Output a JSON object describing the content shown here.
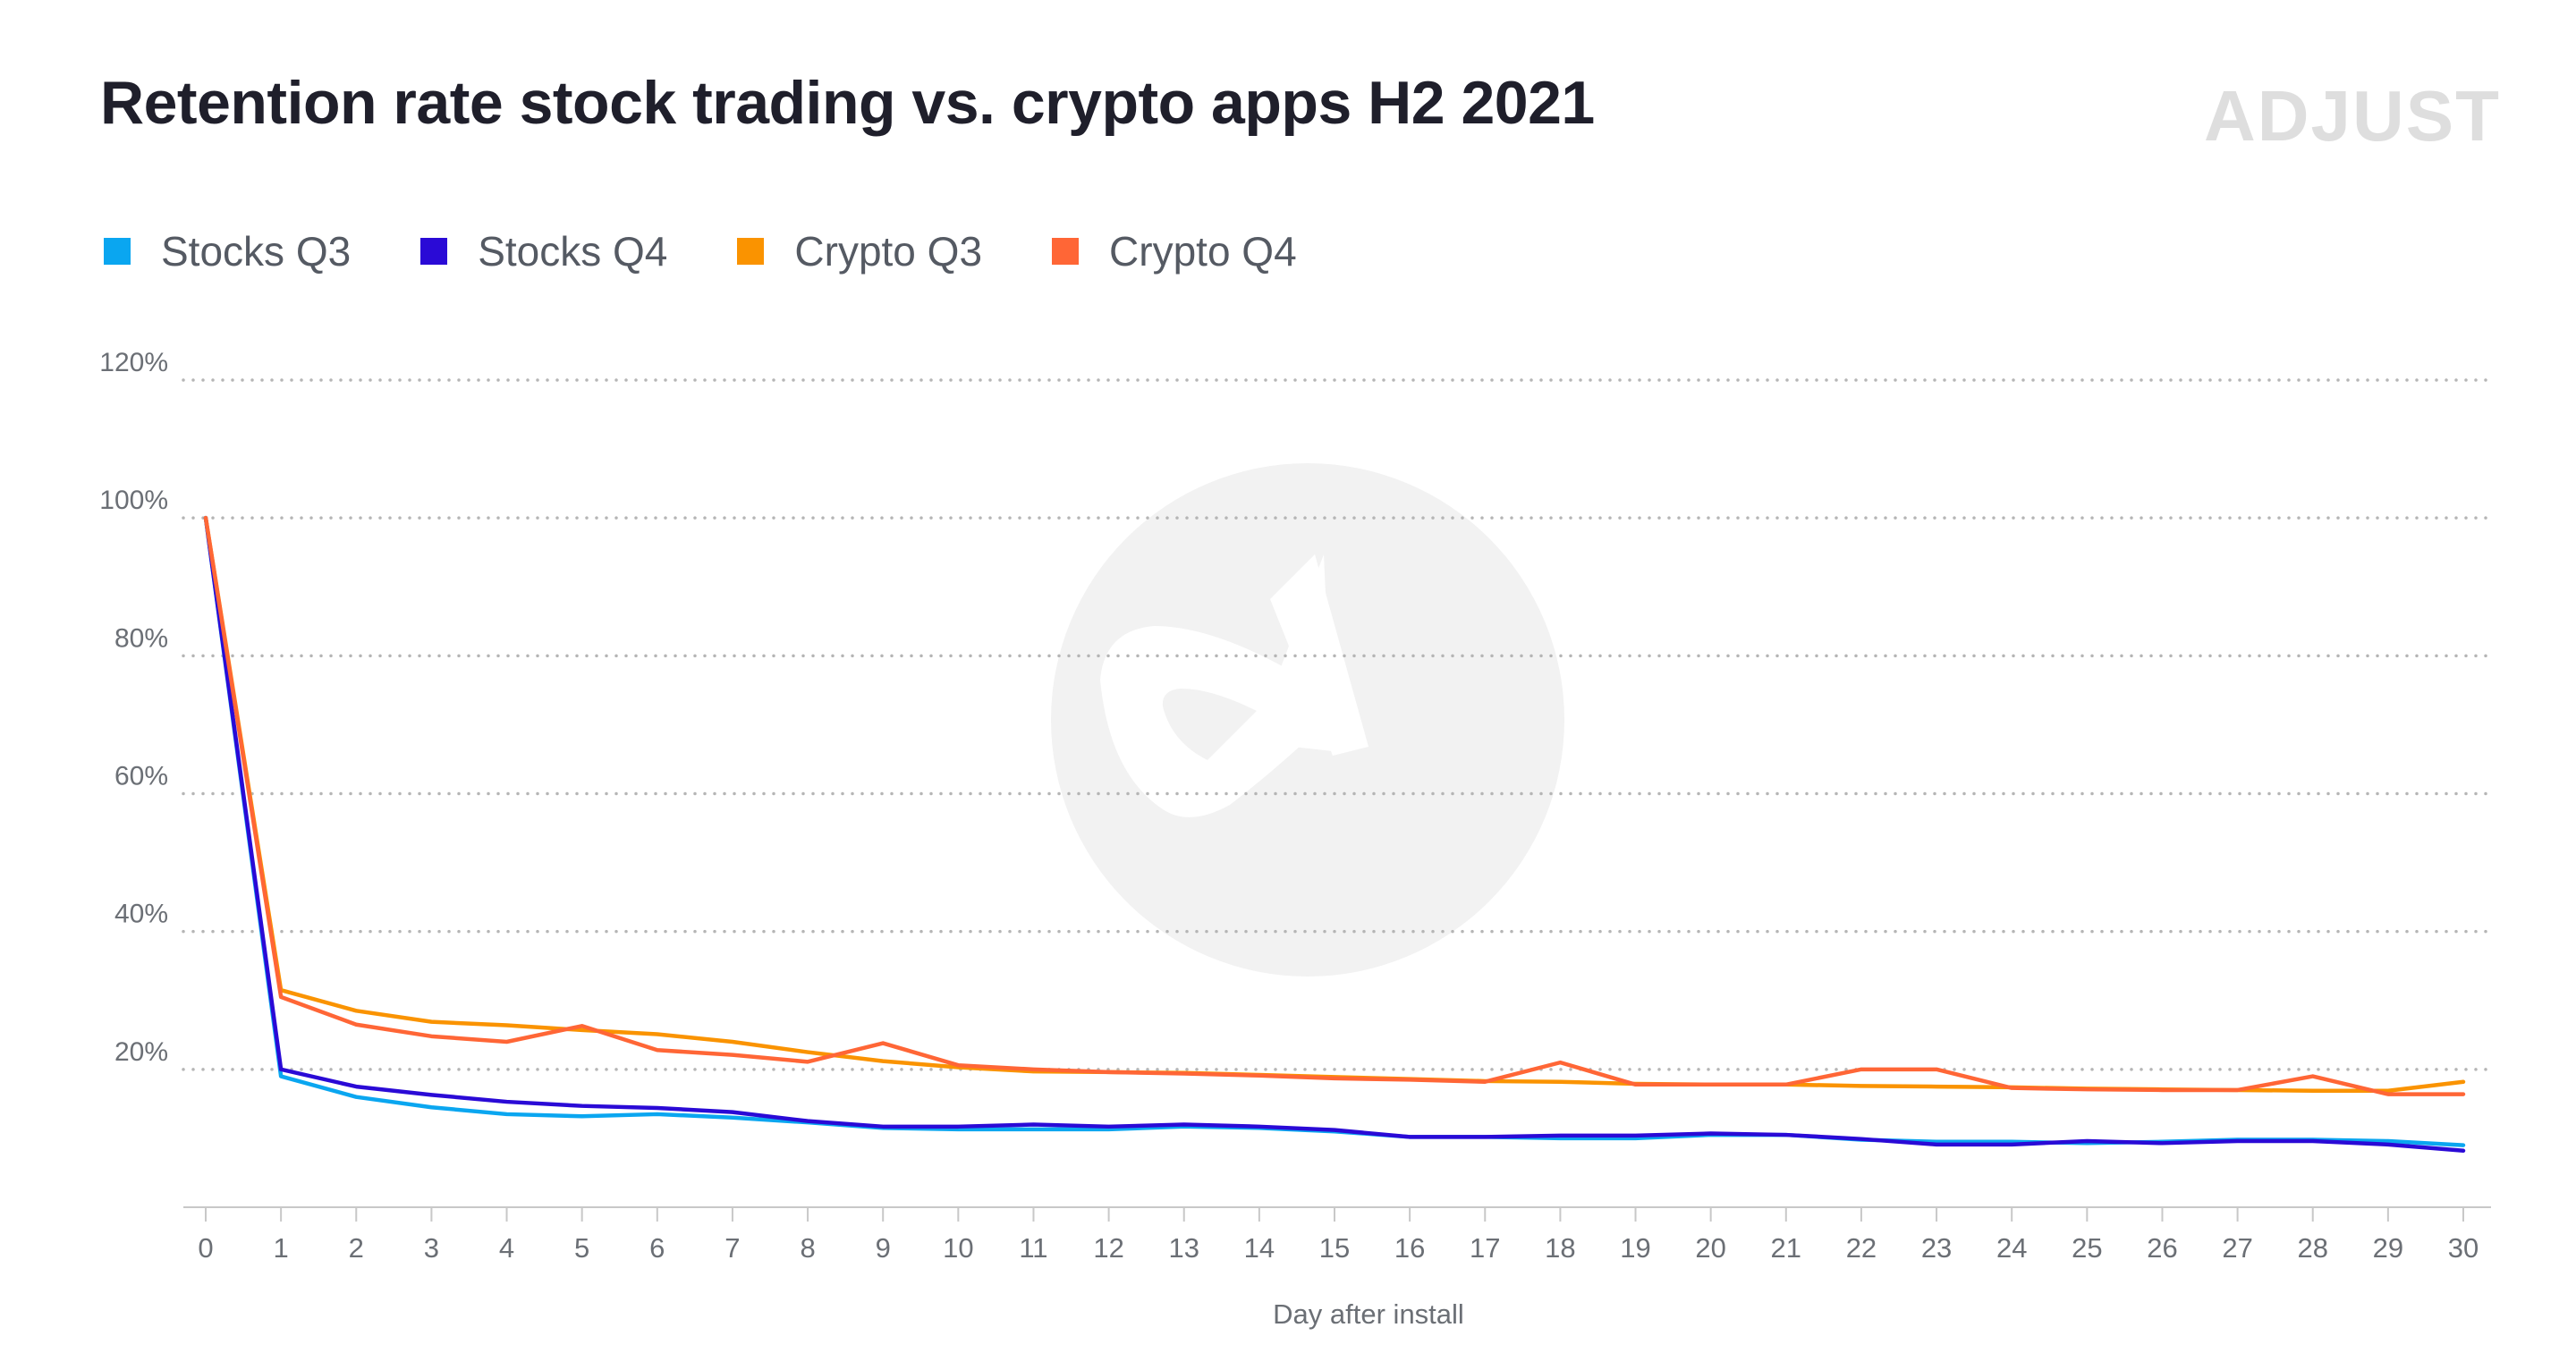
{
  "header": {
    "title": "Retention rate stock trading vs. crypto apps H2 2021",
    "brand": "ADJUST"
  },
  "colors": {
    "stocks_q3": "#0aa6f0",
    "stocks_q4": "#2a0ad6",
    "crypto_q3": "#fa9300",
    "crypto_q4": "#ff6636",
    "grid": "#b5b5b5",
    "watermark": "#f2f2f2"
  },
  "icons": {
    "watermark": "adjust-logo-icon"
  },
  "chart_data": {
    "type": "line",
    "title": "Retention rate stock trading vs. crypto apps H2 2021",
    "xlabel": "Day after install",
    "ylabel": "",
    "ylim": [
      0,
      120
    ],
    "yticks": [
      20,
      40,
      60,
      80,
      100,
      120
    ],
    "ytick_labels": [
      "20%",
      "40%",
      "60%",
      "80%",
      "100%",
      "120%"
    ],
    "grid": "horizontal-dotted",
    "legend": "top-left",
    "x": [
      0,
      1,
      2,
      3,
      4,
      5,
      6,
      7,
      8,
      9,
      10,
      11,
      12,
      13,
      14,
      15,
      16,
      17,
      18,
      19,
      20,
      21,
      22,
      23,
      24,
      25,
      26,
      27,
      28,
      29,
      30
    ],
    "series": [
      {
        "name": "Stocks Q3",
        "color": "#0aa6f0",
        "values": [
          100,
          19,
          16,
          14.5,
          13.5,
          13.2,
          13.5,
          13,
          12.3,
          11.5,
          11.3,
          11.3,
          11.3,
          11.7,
          11.5,
          11,
          10.2,
          10.2,
          10,
          10,
          10.5,
          10.5,
          9.8,
          9.5,
          9.5,
          9.3,
          9.5,
          9.8,
          9.8,
          9.6,
          9
        ]
      },
      {
        "name": "Stocks Q4",
        "color": "#2a0ad6",
        "values": [
          100,
          20,
          17.5,
          16.3,
          15.3,
          14.7,
          14.4,
          13.8,
          12.5,
          11.7,
          11.7,
          12,
          11.7,
          12,
          11.7,
          11.2,
          10.2,
          10.2,
          10.4,
          10.4,
          10.7,
          10.5,
          9.9,
          9.1,
          9.1,
          9.6,
          9.3,
          9.6,
          9.6,
          9.1,
          8.2
        ]
      },
      {
        "name": "Crypto Q3",
        "color": "#fa9300",
        "values": [
          100,
          31.5,
          28.5,
          26.9,
          26.4,
          25.7,
          25.1,
          24,
          22.5,
          21.2,
          20.3,
          19.7,
          19.6,
          19.5,
          19.2,
          18.9,
          18.6,
          18.3,
          18.2,
          17.9,
          17.8,
          17.8,
          17.6,
          17.5,
          17.4,
          17.2,
          17.1,
          17,
          16.9,
          16.9,
          18.2
        ]
      },
      {
        "name": "Crypto Q4",
        "color": "#ff6636",
        "values": [
          100,
          30.5,
          26.5,
          24.8,
          24,
          26.3,
          22.8,
          22.1,
          21.1,
          23.8,
          20.6,
          20,
          19.6,
          19.4,
          19.1,
          18.7,
          18.5,
          18.2,
          21,
          17.8,
          17.8,
          17.8,
          20,
          20,
          17.3,
          17.1,
          17,
          17,
          19,
          16.4,
          16.4
        ]
      }
    ]
  }
}
